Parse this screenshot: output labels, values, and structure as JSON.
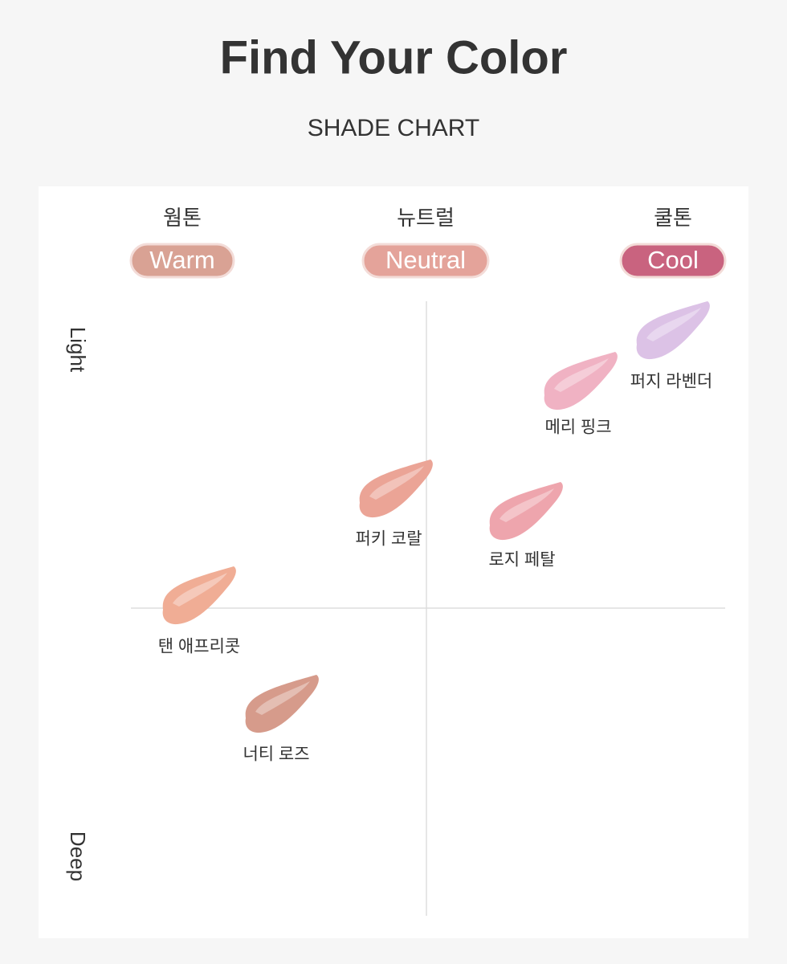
{
  "header": {
    "title": "Find Your Color",
    "subtitle": "SHADE CHART"
  },
  "columns": [
    {
      "label": "웜톤",
      "tag": "Warm",
      "color": "#d9a294"
    },
    {
      "label": "뉴트럴",
      "tag": "Neutral",
      "color": "#e4a39a"
    },
    {
      "label": "쿨톤",
      "tag": "Cool",
      "color": "#c9637f"
    }
  ],
  "axis": {
    "top": "Light",
    "bottom": "Deep"
  },
  "shades": [
    {
      "name": "퍼지 라벤더",
      "color": "#dcc2e6"
    },
    {
      "name": "메리 핑크",
      "color": "#f0b2c3"
    },
    {
      "name": "퍼키 코랄",
      "color": "#eba496"
    },
    {
      "name": "로지 페탈",
      "color": "#eea5ad"
    },
    {
      "name": "탠 애프리콧",
      "color": "#f0ad95"
    },
    {
      "name": "너티 로즈",
      "color": "#d69b8b"
    }
  ]
}
